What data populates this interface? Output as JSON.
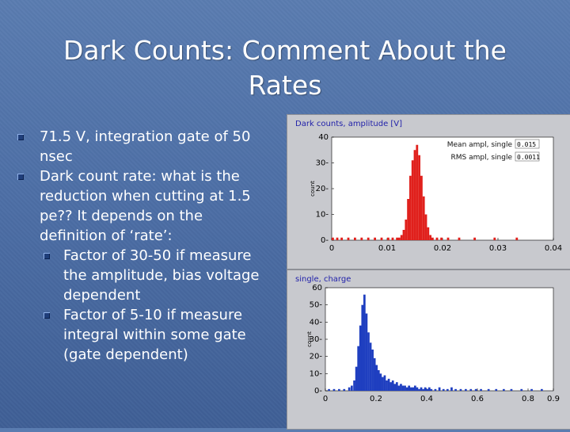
{
  "slide": {
    "title": "Dark Counts: Comment About the Rates",
    "bullets": [
      {
        "text": "71.5 V, integration gate of 50 nsec"
      },
      {
        "text": "Dark count rate: what is the reduction when cutting at 1.5 pe?? It depends on the definition of ‘rate’:",
        "subs": [
          "Factor of 30-50 if measure the amplitude, bias voltage dependent",
          "Factor of 5-10 if measure integral within some gate (gate dependent)"
        ]
      }
    ]
  },
  "chart_data": [
    {
      "type": "bar",
      "title": "Dark counts, amplitude [V]",
      "ylabel": "count",
      "xlim": [
        0,
        0.04
      ],
      "ylim": [
        0,
        40
      ],
      "xticks": [
        0,
        0.01,
        0.02,
        0.03,
        0.04
      ],
      "xtick_labels": [
        "0",
        "0.01",
        "0.02",
        "0.03",
        "0.04"
      ],
      "yticks": [
        0,
        10,
        20,
        30,
        40
      ],
      "ytick_labels": [
        "0-",
        "10-",
        "20-",
        "30-",
        "40"
      ],
      "bin_width": 0.0004,
      "bar_color": "#e0201c",
      "legend": [
        {
          "label": "Mean ampl, single",
          "value": "0.015"
        },
        {
          "label": "RMS ampl, single",
          "value": "0.0011"
        }
      ],
      "bins": [
        {
          "x": 0.0,
          "y": 1
        },
        {
          "x": 0.0008,
          "y": 1
        },
        {
          "x": 0.0016,
          "y": 1
        },
        {
          "x": 0.0028,
          "y": 1
        },
        {
          "x": 0.004,
          "y": 1
        },
        {
          "x": 0.0052,
          "y": 1
        },
        {
          "x": 0.0064,
          "y": 1
        },
        {
          "x": 0.0076,
          "y": 1
        },
        {
          "x": 0.0088,
          "y": 1
        },
        {
          "x": 0.01,
          "y": 1
        },
        {
          "x": 0.0108,
          "y": 1
        },
        {
          "x": 0.0116,
          "y": 1
        },
        {
          "x": 0.012,
          "y": 1
        },
        {
          "x": 0.0124,
          "y": 2
        },
        {
          "x": 0.0128,
          "y": 4
        },
        {
          "x": 0.0132,
          "y": 8
        },
        {
          "x": 0.0136,
          "y": 16
        },
        {
          "x": 0.014,
          "y": 25
        },
        {
          "x": 0.0144,
          "y": 31
        },
        {
          "x": 0.0148,
          "y": 35
        },
        {
          "x": 0.0152,
          "y": 37
        },
        {
          "x": 0.0156,
          "y": 33
        },
        {
          "x": 0.016,
          "y": 25
        },
        {
          "x": 0.0164,
          "y": 17
        },
        {
          "x": 0.0168,
          "y": 10
        },
        {
          "x": 0.0172,
          "y": 5
        },
        {
          "x": 0.0176,
          "y": 2
        },
        {
          "x": 0.018,
          "y": 1
        },
        {
          "x": 0.0188,
          "y": 1
        },
        {
          "x": 0.0196,
          "y": 1
        },
        {
          "x": 0.0208,
          "y": 1
        },
        {
          "x": 0.0228,
          "y": 1
        },
        {
          "x": 0.0256,
          "y": 1
        },
        {
          "x": 0.0292,
          "y": 1
        },
        {
          "x": 0.0332,
          "y": 1
        }
      ]
    },
    {
      "type": "bar",
      "title": "single, charge",
      "ylabel": "count",
      "xlim": [
        0,
        0.9
      ],
      "ylim": [
        0,
        60
      ],
      "xticks": [
        0,
        0.2,
        0.4,
        0.6,
        0.8,
        0.9
      ],
      "xtick_labels": [
        "0",
        "0.2",
        "0.4",
        "0.6",
        "0.8",
        "0.9"
      ],
      "yticks": [
        0,
        10,
        20,
        30,
        40,
        50,
        60
      ],
      "ytick_labels": [
        "0-",
        "10-",
        "20-",
        "30-",
        "40-",
        "50-",
        "60"
      ],
      "bin_width": 0.0085,
      "bar_color": "#1f3fc0",
      "bins": [
        {
          "x": 0.01,
          "y": 1
        },
        {
          "x": 0.03,
          "y": 1
        },
        {
          "x": 0.05,
          "y": 1
        },
        {
          "x": 0.07,
          "y": 1
        },
        {
          "x": 0.09,
          "y": 2
        },
        {
          "x": 0.1,
          "y": 3
        },
        {
          "x": 0.11,
          "y": 6
        },
        {
          "x": 0.118,
          "y": 14
        },
        {
          "x": 0.126,
          "y": 26
        },
        {
          "x": 0.134,
          "y": 38
        },
        {
          "x": 0.142,
          "y": 50
        },
        {
          "x": 0.15,
          "y": 56
        },
        {
          "x": 0.158,
          "y": 45
        },
        {
          "x": 0.166,
          "y": 34
        },
        {
          "x": 0.174,
          "y": 28
        },
        {
          "x": 0.182,
          "y": 24
        },
        {
          "x": 0.19,
          "y": 19
        },
        {
          "x": 0.198,
          "y": 15
        },
        {
          "x": 0.206,
          "y": 12
        },
        {
          "x": 0.214,
          "y": 10
        },
        {
          "x": 0.222,
          "y": 8
        },
        {
          "x": 0.23,
          "y": 9
        },
        {
          "x": 0.238,
          "y": 6
        },
        {
          "x": 0.246,
          "y": 7
        },
        {
          "x": 0.254,
          "y": 5
        },
        {
          "x": 0.262,
          "y": 6
        },
        {
          "x": 0.27,
          "y": 4
        },
        {
          "x": 0.278,
          "y": 5
        },
        {
          "x": 0.286,
          "y": 3
        },
        {
          "x": 0.294,
          "y": 4
        },
        {
          "x": 0.302,
          "y": 3
        },
        {
          "x": 0.31,
          "y": 3
        },
        {
          "x": 0.318,
          "y": 2
        },
        {
          "x": 0.326,
          "y": 3
        },
        {
          "x": 0.334,
          "y": 2
        },
        {
          "x": 0.342,
          "y": 2
        },
        {
          "x": 0.35,
          "y": 3
        },
        {
          "x": 0.358,
          "y": 2
        },
        {
          "x": 0.366,
          "y": 1
        },
        {
          "x": 0.374,
          "y": 2
        },
        {
          "x": 0.382,
          "y": 1
        },
        {
          "x": 0.39,
          "y": 2
        },
        {
          "x": 0.398,
          "y": 1
        },
        {
          "x": 0.406,
          "y": 2
        },
        {
          "x": 0.414,
          "y": 1
        },
        {
          "x": 0.43,
          "y": 1
        },
        {
          "x": 0.446,
          "y": 2
        },
        {
          "x": 0.462,
          "y": 1
        },
        {
          "x": 0.478,
          "y": 1
        },
        {
          "x": 0.494,
          "y": 2
        },
        {
          "x": 0.51,
          "y": 1
        },
        {
          "x": 0.53,
          "y": 1
        },
        {
          "x": 0.55,
          "y": 1
        },
        {
          "x": 0.57,
          "y": 1
        },
        {
          "x": 0.59,
          "y": 1
        },
        {
          "x": 0.61,
          "y": 1
        },
        {
          "x": 0.64,
          "y": 1
        },
        {
          "x": 0.67,
          "y": 1
        },
        {
          "x": 0.7,
          "y": 1
        },
        {
          "x": 0.73,
          "y": 1
        },
        {
          "x": 0.77,
          "y": 1
        },
        {
          "x": 0.81,
          "y": 1
        },
        {
          "x": 0.85,
          "y": 1
        }
      ]
    }
  ]
}
